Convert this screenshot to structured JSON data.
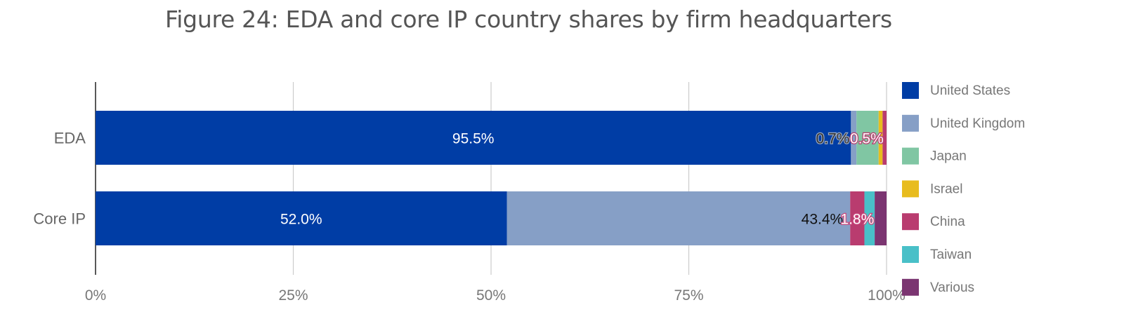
{
  "chart_data": {
    "type": "bar",
    "orientation": "horizontal",
    "stacked": true,
    "title": "Figure 24: EDA and core IP country shares by firm headquarters",
    "categories": [
      "EDA",
      "Core IP"
    ],
    "xlim": [
      0,
      100
    ],
    "x_ticks": [
      "0%",
      "25%",
      "50%",
      "75%",
      "100%"
    ],
    "grid": true,
    "legend_position": "right",
    "series": [
      {
        "name": "United States",
        "color": "#003da5",
        "values": [
          95.5,
          52.0
        ],
        "labels": [
          "95.5%",
          "52.0%"
        ]
      },
      {
        "name": "United Kingdom",
        "color": "#869fc6",
        "values": [
          0.7,
          43.4
        ],
        "labels": [
          "0.7%",
          "43.4%"
        ]
      },
      {
        "name": "Japan",
        "color": "#80c6a3",
        "values": [
          2.8,
          0
        ],
        "labels": [
          "",
          ""
        ]
      },
      {
        "name": "Israel",
        "color": "#e8bc1e",
        "values": [
          0.5,
          0
        ],
        "labels": [
          "",
          ""
        ]
      },
      {
        "name": "China",
        "color": "#b93c6f",
        "values": [
          0.5,
          1.8
        ],
        "labels": [
          "0.5%",
          "1.8%"
        ]
      },
      {
        "name": "Taiwan",
        "color": "#49c0c8",
        "values": [
          0,
          1.3
        ],
        "labels": [
          "",
          ""
        ]
      },
      {
        "name": "Various",
        "color": "#7b3571",
        "values": [
          0,
          1.5
        ],
        "labels": [
          "",
          ""
        ]
      }
    ]
  }
}
